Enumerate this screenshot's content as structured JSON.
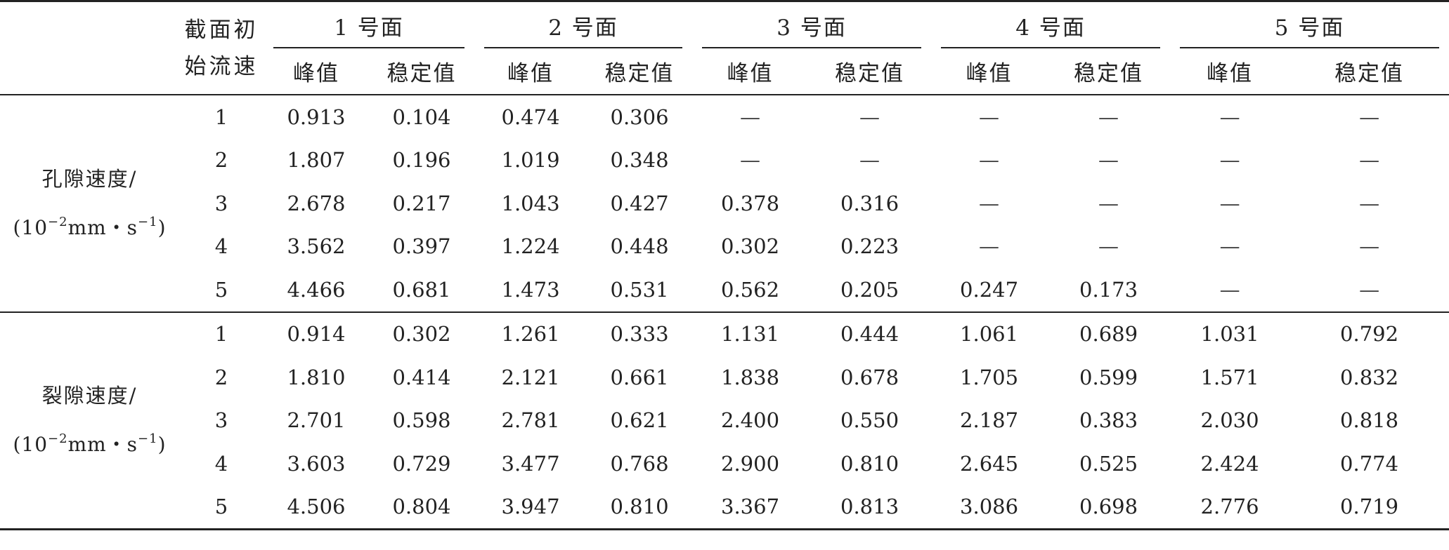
{
  "table": {
    "velocity_header": [
      "截面初",
      "始流速"
    ],
    "groups": [
      "1 号面",
      "2 号面",
      "3 号面",
      "4 号面",
      "5 号面"
    ],
    "sub_headers": [
      "峰值",
      "稳定值",
      "峰值",
      "稳定值",
      "峰值",
      "稳定值",
      "峰值",
      "稳定值",
      "峰值",
      "稳定值"
    ],
    "sections": [
      {
        "label_line1": "孔隙速度/",
        "label_line2_pre": "(10",
        "label_line2_sup1": "−2",
        "label_line2_mid": "mm・s",
        "label_line2_sup2": "−1",
        "label_line2_post": ")",
        "rows": [
          {
            "v": "1",
            "cells": [
              "0.913",
              "0.104",
              "0.474",
              "0.306",
              "—",
              "—",
              "—",
              "—",
              "—",
              "—"
            ]
          },
          {
            "v": "2",
            "cells": [
              "1.807",
              "0.196",
              "1.019",
              "0.348",
              "—",
              "—",
              "—",
              "—",
              "—",
              "—"
            ]
          },
          {
            "v": "3",
            "cells": [
              "2.678",
              "0.217",
              "1.043",
              "0.427",
              "0.378",
              "0.316",
              "—",
              "—",
              "—",
              "—"
            ]
          },
          {
            "v": "4",
            "cells": [
              "3.562",
              "0.397",
              "1.224",
              "0.448",
              "0.302",
              "0.223",
              "—",
              "—",
              "—",
              "—"
            ]
          },
          {
            "v": "5",
            "cells": [
              "4.466",
              "0.681",
              "1.473",
              "0.531",
              "0.562",
              "0.205",
              "0.247",
              "0.173",
              "—",
              "—"
            ]
          }
        ]
      },
      {
        "label_line1": "裂隙速度/",
        "label_line2_pre": "(10",
        "label_line2_sup1": "−2",
        "label_line2_mid": "mm・s",
        "label_line2_sup2": "−1",
        "label_line2_post": ")",
        "rows": [
          {
            "v": "1",
            "cells": [
              "0.914",
              "0.302",
              "1.261",
              "0.333",
              "1.131",
              "0.444",
              "1.061",
              "0.689",
              "1.031",
              "0.792"
            ]
          },
          {
            "v": "2",
            "cells": [
              "1.810",
              "0.414",
              "2.121",
              "0.661",
              "1.838",
              "0.678",
              "1.705",
              "0.599",
              "1.571",
              "0.832"
            ]
          },
          {
            "v": "3",
            "cells": [
              "2.701",
              "0.598",
              "2.781",
              "0.621",
              "2.400",
              "0.550",
              "2.187",
              "0.383",
              "2.030",
              "0.818"
            ]
          },
          {
            "v": "4",
            "cells": [
              "3.603",
              "0.729",
              "3.477",
              "0.768",
              "2.900",
              "0.810",
              "2.645",
              "0.525",
              "2.424",
              "0.774"
            ]
          },
          {
            "v": "5",
            "cells": [
              "4.506",
              "0.804",
              "3.947",
              "0.810",
              "3.367",
              "0.813",
              "3.086",
              "0.698",
              "2.776",
              "0.719"
            ]
          }
        ]
      }
    ]
  }
}
